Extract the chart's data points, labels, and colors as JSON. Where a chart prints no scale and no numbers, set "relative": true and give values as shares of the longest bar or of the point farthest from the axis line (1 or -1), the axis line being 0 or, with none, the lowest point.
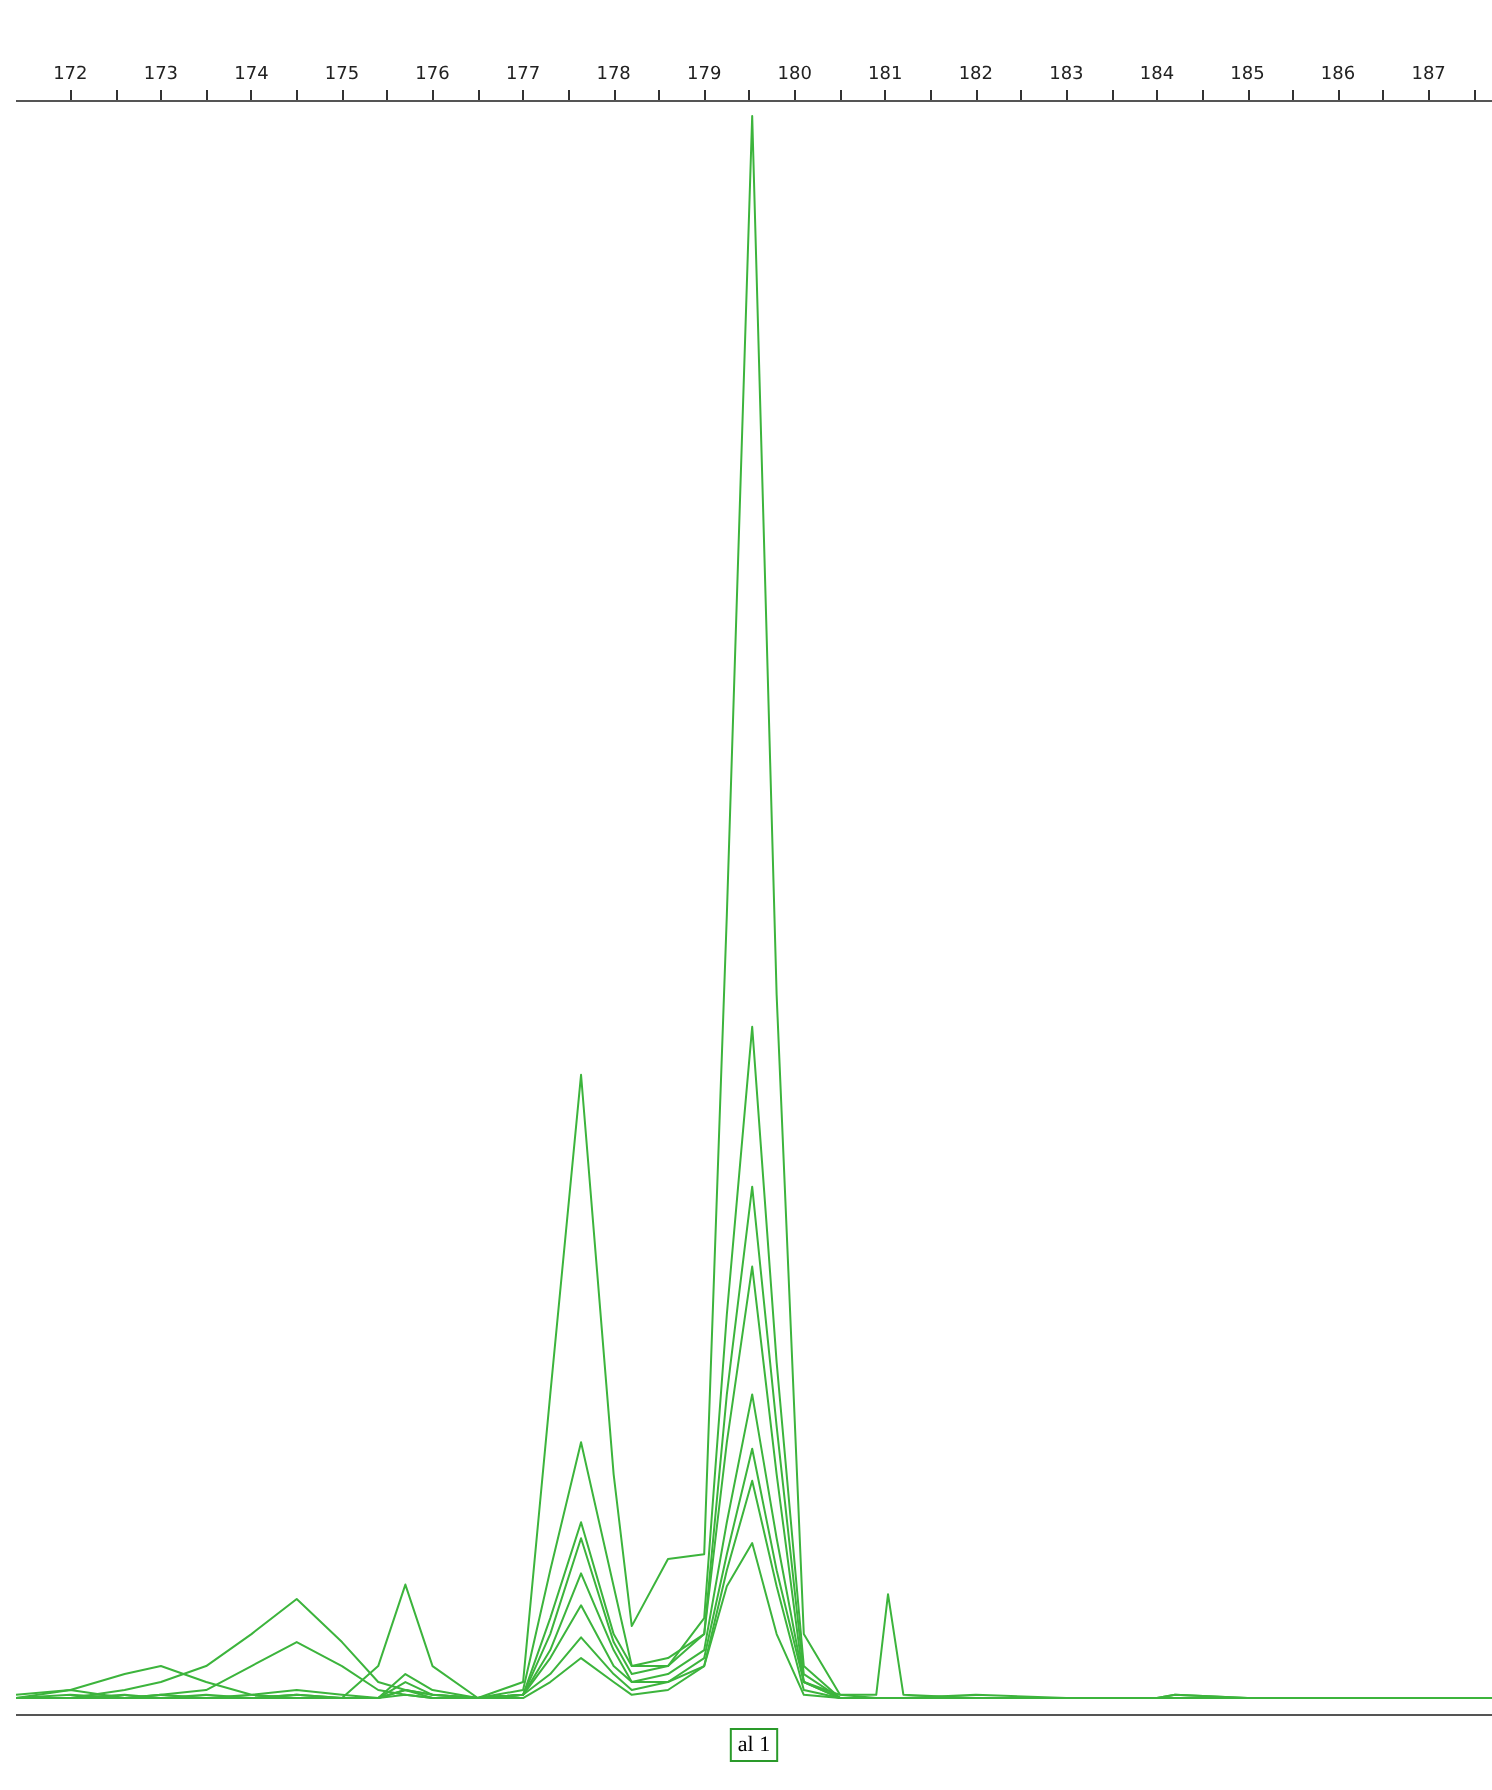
{
  "chart_data": {
    "type": "line",
    "relative": true,
    "grid": false,
    "marker": "none",
    "line_style": "solid",
    "xlim": [
      171.4,
      187.7
    ],
    "xticks": [
      172,
      {
        "value": 172.5,
        "label": null
      },
      173,
      {
        "value": 173.5,
        "label": null
      },
      174,
      {
        "value": 174.5,
        "label": null
      },
      175,
      {
        "value": 175.5,
        "label": null
      },
      176,
      {
        "value": 176.5,
        "label": null
      },
      177,
      {
        "value": 177.5,
        "label": null
      },
      178,
      {
        "value": 178.5,
        "label": null
      },
      179,
      {
        "value": 179.5,
        "label": null
      },
      180,
      {
        "value": 180.5,
        "label": null
      },
      181,
      {
        "value": 181.5,
        "label": null
      },
      182,
      {
        "value": 182.5,
        "label": null
      },
      183,
      {
        "value": 183.5,
        "label": null
      },
      184,
      {
        "value": 184.5,
        "label": null
      },
      185,
      {
        "value": 185.5,
        "label": null
      },
      186,
      {
        "value": 186.5,
        "label": null
      },
      187,
      {
        "value": 187.5,
        "label": null
      }
    ],
    "x": [
      171.4,
      172,
      172.6,
      173,
      173.5,
      174,
      174.5,
      175,
      175.4,
      175.7,
      176,
      176.5,
      177,
      177.3,
      177.64,
      178,
      178.2,
      178.6,
      179,
      179.25,
      179.53,
      179.8,
      180.1,
      180.5,
      180.9,
      181.03,
      181.2,
      182,
      183,
      184,
      184.2,
      185,
      186,
      187,
      187.7
    ],
    "annotations": [
      "al 1"
    ],
    "series": [
      {
        "color": "#3cb43c",
        "values": [
          0.01,
          0.015,
          0.01,
          0.012,
          0.01,
          0.01,
          0.012,
          0.01,
          0.01,
          0.015,
          0.012,
          0.01,
          0.02,
          0.2,
          0.4,
          0.15,
          0.055,
          0.097,
          0.1,
          0.5,
          1.0,
          0.45,
          0.05,
          0.012,
          0.01,
          0.01,
          0.01,
          0.012,
          0.01,
          0.01,
          0.012,
          0.01,
          0.01,
          0.01,
          0.01
        ]
      },
      {
        "color": "#3cb43c",
        "values": [
          0.012,
          0.015,
          0.025,
          0.03,
          0.02,
          0.012,
          0.01,
          0.01,
          0.01,
          0.012,
          0.01,
          0.01,
          0.015,
          0.09,
          0.17,
          0.08,
          0.03,
          0.03,
          0.06,
          0.25,
          0.43,
          0.22,
          0.03,
          0.01,
          0.01,
          0.01,
          0.01,
          0.01,
          0.01,
          0.01,
          0.01,
          0.01,
          0.01,
          0.01,
          0.01
        ]
      },
      {
        "color": "#3cb43c",
        "values": [
          0.01,
          0.01,
          0.012,
          0.01,
          0.01,
          0.01,
          0.012,
          0.01,
          0.01,
          0.02,
          0.012,
          0.01,
          0.012,
          0.06,
          0.12,
          0.05,
          0.03,
          0.035,
          0.05,
          0.2,
          0.33,
          0.18,
          0.025,
          0.01,
          0.01,
          0.01,
          0.01,
          0.01,
          0.01,
          0.01,
          0.01,
          0.01,
          0.01,
          0.01,
          0.01
        ]
      },
      {
        "color": "#3cb43c",
        "values": [
          0.01,
          0.012,
          0.01,
          0.012,
          0.015,
          0.03,
          0.045,
          0.03,
          0.015,
          0.012,
          0.01,
          0.01,
          0.012,
          0.05,
          0.11,
          0.045,
          0.025,
          0.03,
          0.05,
          0.17,
          0.28,
          0.15,
          0.02,
          0.01,
          0.01,
          0.01,
          0.01,
          0.01,
          0.01,
          0.01,
          0.01,
          0.01,
          0.01,
          0.01,
          0.01
        ]
      },
      {
        "color": "#3cb43c",
        "values": [
          0.01,
          0.01,
          0.01,
          0.01,
          0.01,
          0.012,
          0.015,
          0.012,
          0.01,
          0.025,
          0.015,
          0.01,
          0.012,
          0.04,
          0.088,
          0.04,
          0.02,
          0.025,
          0.04,
          0.12,
          0.2,
          0.11,
          0.02,
          0.01,
          0.01,
          0.01,
          0.01,
          0.01,
          0.01,
          0.01,
          0.01,
          0.01,
          0.01,
          0.01,
          0.01
        ]
      },
      {
        "color": "#3cb43c",
        "values": [
          0.01,
          0.01,
          0.01,
          0.01,
          0.01,
          0.01,
          0.01,
          0.01,
          0.03,
          0.081,
          0.03,
          0.01,
          0.012,
          0.035,
          0.068,
          0.03,
          0.02,
          0.02,
          0.035,
          0.1,
          0.166,
          0.09,
          0.02,
          0.012,
          0.012,
          0.075,
          0.012,
          0.01,
          0.01,
          0.01,
          0.012,
          0.01,
          0.01,
          0.01,
          0.01
        ]
      },
      {
        "color": "#3cb43c",
        "values": [
          0.01,
          0.01,
          0.01,
          0.01,
          0.012,
          0.01,
          0.01,
          0.01,
          0.01,
          0.015,
          0.012,
          0.01,
          0.012,
          0.025,
          0.048,
          0.025,
          0.015,
          0.02,
          0.03,
          0.09,
          0.146,
          0.08,
          0.015,
          0.01,
          0.01,
          0.01,
          0.01,
          0.01,
          0.01,
          0.01,
          0.01,
          0.01,
          0.01,
          0.01,
          0.01
        ]
      },
      {
        "color": "#3cb43c",
        "values": [
          0.01,
          0.01,
          0.015,
          0.02,
          0.03,
          0.05,
          0.072,
          0.045,
          0.02,
          0.015,
          0.01,
          0.01,
          0.01,
          0.02,
          0.035,
          0.02,
          0.012,
          0.015,
          0.03,
          0.08,
          0.107,
          0.05,
          0.012,
          0.01,
          0.01,
          0.01,
          0.01,
          0.01,
          0.01,
          0.01,
          0.01,
          0.01,
          0.01,
          0.01,
          0.01
        ]
      }
    ]
  }
}
